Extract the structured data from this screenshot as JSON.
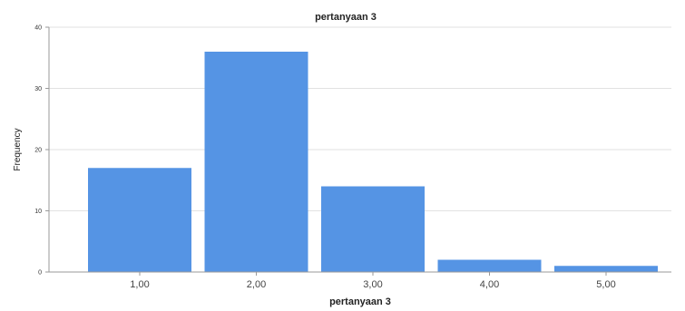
{
  "chart_data": {
    "type": "bar",
    "title": "pertanyaan 3",
    "xlabel": "pertanyaan 3",
    "ylabel": "Frequency",
    "categories": [
      "1,00",
      "2,00",
      "3,00",
      "4,00",
      "5,00"
    ],
    "values": [
      17,
      36,
      14,
      2,
      1
    ],
    "ylim": [
      0,
      40
    ],
    "yticks": [
      0,
      10,
      20,
      30,
      40
    ],
    "grid": true,
    "bar_color": "#5594e4"
  }
}
